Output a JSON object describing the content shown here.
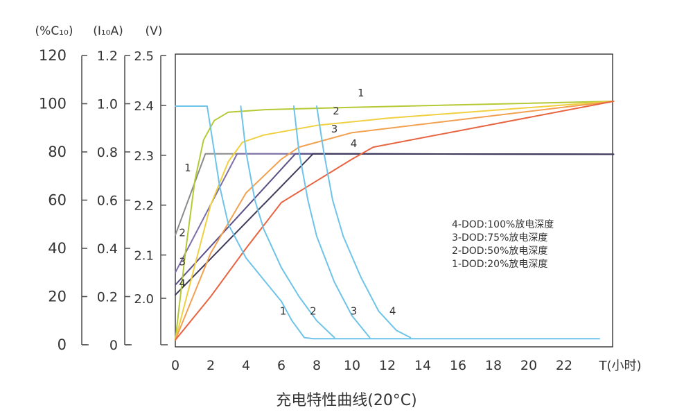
{
  "chart_data": {
    "type": "line",
    "title": "充电特性曲线(20°C)",
    "xlabel": "T(小时)",
    "x_ticks": [
      0,
      2,
      4,
      6,
      8,
      10,
      12,
      14,
      16,
      18,
      20,
      22
    ],
    "xlim": [
      0,
      24.8
    ],
    "axes": {
      "capacity": {
        "unit": "(%C₁₀)",
        "ticks": [
          "0",
          "20",
          "40",
          "60",
          "80",
          "100",
          "120"
        ],
        "ylim": [
          0,
          120
        ]
      },
      "current": {
        "unit": "(I₁₀A)",
        "ticks": [
          "0",
          "0.2",
          "0.4",
          "0.6",
          "0.8",
          "1.0",
          "1.2"
        ],
        "ylim": [
          0,
          1.2
        ]
      },
      "voltage": {
        "unit": "(V)",
        "ticks": [
          "2.0",
          "2.1",
          "2.2",
          "2.3",
          "2.4",
          "2.5"
        ],
        "ylim": [
          1.92,
          2.5
        ],
        "tick_values": [
          2.0,
          2.1,
          2.2,
          2.3,
          2.4,
          2.5
        ]
      }
    },
    "legend": {
      "placement": "center-right",
      "entries": [
        "4-DOD:100%放电深度",
        "3-DOD:75%放电深度",
        "2-DOD:50%放电深度",
        "1-DOD:20%放电深度"
      ]
    },
    "series": [
      {
        "group": "voltage",
        "label": "1",
        "color": "#8a8a8a",
        "points": [
          [
            0,
            2.14
          ],
          [
            1.7,
            2.303
          ],
          [
            24.8,
            2.302
          ]
        ]
      },
      {
        "group": "voltage",
        "label": "2",
        "color": "#7e6ea8",
        "points": [
          [
            0,
            2.065
          ],
          [
            3.5,
            2.303
          ],
          [
            24.8,
            2.302
          ]
        ]
      },
      {
        "group": "voltage",
        "label": "3",
        "color": "#5a4f86",
        "points": [
          [
            0,
            2.04
          ],
          [
            6.8,
            2.303
          ],
          [
            24.8,
            2.302
          ]
        ]
      },
      {
        "group": "voltage",
        "label": "4",
        "color": "#3e3a5a",
        "points": [
          [
            0,
            2.02
          ],
          [
            7.8,
            2.303
          ],
          [
            24.8,
            2.302
          ]
        ]
      },
      {
        "group": "capacity",
        "label": "1",
        "color": "#b5c935",
        "points": [
          [
            0,
            2
          ],
          [
            0.6,
            40
          ],
          [
            1.1,
            68
          ],
          [
            1.6,
            85
          ],
          [
            2.2,
            93
          ],
          [
            3.0,
            96.5
          ],
          [
            5,
            97.5
          ],
          [
            10,
            98.5
          ],
          [
            24.8,
            101
          ]
        ]
      },
      {
        "group": "capacity",
        "label": "2",
        "color": "#f0d040",
        "points": [
          [
            0,
            2
          ],
          [
            1.0,
            30
          ],
          [
            2.0,
            58
          ],
          [
            3.0,
            76
          ],
          [
            3.8,
            84
          ],
          [
            5,
            87
          ],
          [
            8,
            91
          ],
          [
            12,
            94
          ],
          [
            24.8,
            101
          ]
        ]
      },
      {
        "group": "capacity",
        "label": "3",
        "color": "#f2a050",
        "points": [
          [
            0,
            2
          ],
          [
            2.0,
            38
          ],
          [
            4.0,
            63
          ],
          [
            6.0,
            77
          ],
          [
            7.0,
            82
          ],
          [
            8.5,
            85
          ],
          [
            10,
            88
          ],
          [
            24.8,
            101
          ]
        ]
      },
      {
        "group": "capacity",
        "label": "4",
        "color": "#e86440",
        "points": [
          [
            0,
            2
          ],
          [
            2.0,
            20
          ],
          [
            4.0,
            40
          ],
          [
            6.0,
            59
          ],
          [
            8.0,
            68
          ],
          [
            10,
            77
          ],
          [
            11.2,
            82
          ],
          [
            24.8,
            101
          ]
        ]
      },
      {
        "group": "current",
        "label": "1",
        "color": "#6ec3e8",
        "points": [
          [
            0,
            0.99
          ],
          [
            1.8,
            0.99
          ],
          [
            2.1,
            0.85
          ],
          [
            2.5,
            0.66
          ],
          [
            3.0,
            0.5
          ],
          [
            4.0,
            0.36
          ],
          [
            5.0,
            0.27
          ],
          [
            6.0,
            0.18
          ],
          [
            6.6,
            0.1
          ],
          [
            7.3,
            0.03
          ],
          [
            7.8,
            0.025
          ],
          [
            24,
            0.025
          ]
        ]
      },
      {
        "group": "current",
        "label": "2",
        "color": "#6ec3e8",
        "points": [
          [
            3.7,
            0.99
          ],
          [
            4.0,
            0.8
          ],
          [
            4.5,
            0.6
          ],
          [
            5.0,
            0.48
          ],
          [
            6.0,
            0.32
          ],
          [
            7.0,
            0.2
          ],
          [
            8.0,
            0.1
          ],
          [
            9.0,
            0.03
          ]
        ]
      },
      {
        "group": "current",
        "label": "3",
        "color": "#6ec3e8",
        "points": [
          [
            6.7,
            0.99
          ],
          [
            7.0,
            0.8
          ],
          [
            7.5,
            0.6
          ],
          [
            8.0,
            0.45
          ],
          [
            9.0,
            0.26
          ],
          [
            10.0,
            0.12
          ],
          [
            11.0,
            0.03
          ]
        ]
      },
      {
        "group": "current",
        "label": "4",
        "color": "#6ec3e8",
        "points": [
          [
            8.0,
            0.99
          ],
          [
            8.4,
            0.8
          ],
          [
            8.9,
            0.6
          ],
          [
            9.5,
            0.45
          ],
          [
            10.5,
            0.28
          ],
          [
            11.5,
            0.14
          ],
          [
            12.5,
            0.06
          ],
          [
            13.3,
            0.03
          ]
        ]
      }
    ],
    "curve_labels": [
      {
        "text": "1",
        "at": [
          10.5,
          103
        ]
      },
      {
        "text": "2",
        "at": [
          9.1,
          95.5
        ]
      },
      {
        "text": "3",
        "at": [
          9.0,
          88
        ]
      },
      {
        "text": "4",
        "at": [
          10.1,
          82
        ]
      },
      {
        "text": "1",
        "at": [
          0.7,
          72
        ]
      },
      {
        "text": "2",
        "at": [
          0.4,
          45
        ]
      },
      {
        "text": "3",
        "at": [
          0.4,
          33
        ]
      },
      {
        "text": "4",
        "at": [
          0.4,
          24
        ]
      },
      {
        "text": "1",
        "at": [
          6.1,
          12.5
        ]
      },
      {
        "text": "2",
        "at": [
          7.8,
          12.5
        ]
      },
      {
        "text": "3",
        "at": [
          10.1,
          12.5
        ]
      },
      {
        "text": "4",
        "at": [
          12.3,
          12.5
        ]
      }
    ]
  }
}
